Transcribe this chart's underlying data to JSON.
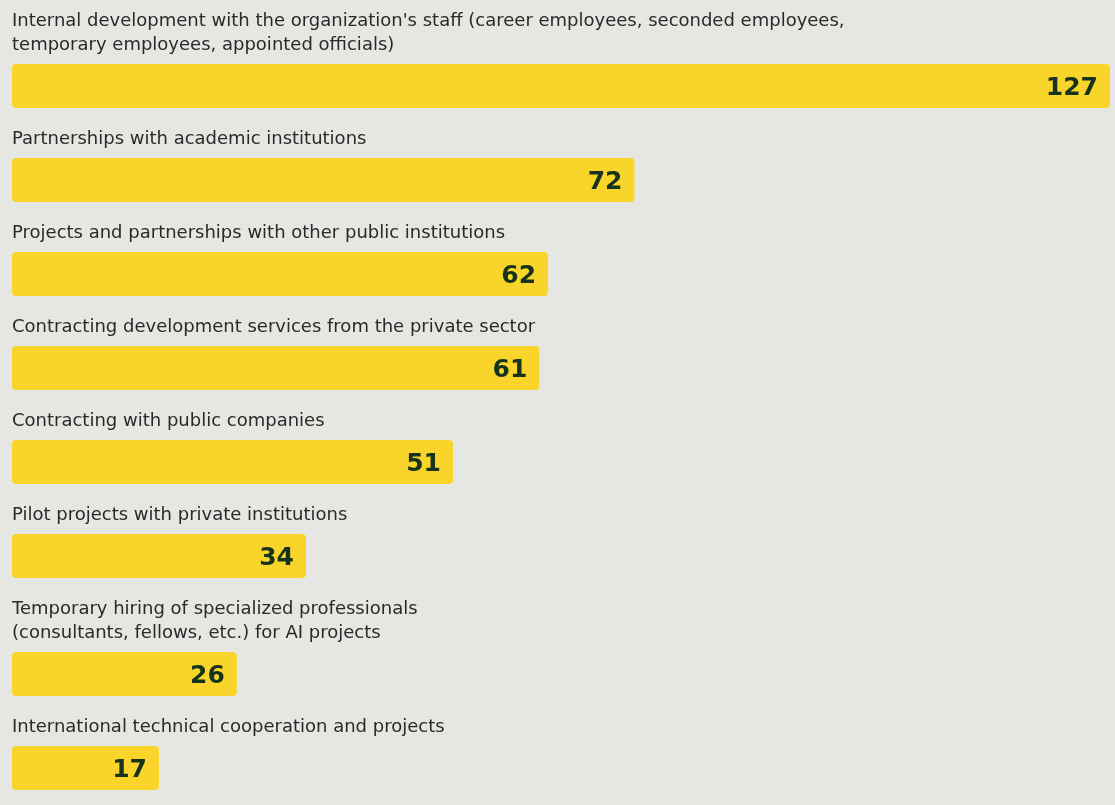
{
  "chart_data": {
    "type": "bar",
    "orientation": "horizontal",
    "categories": [
      "Internal development with the organization's staff (career employees, seconded employees,\ntemporary employees, appointed officials)",
      "Partnerships with academic institutions",
      "Projects and partnerships with other public institutions",
      "Contracting development services from the private sector",
      "Contracting with public companies",
      "Pilot projects with private institutions",
      "Temporary hiring of specialized professionals\n(consultants, fellows, etc.) for AI projects",
      "International technical cooperation and projects"
    ],
    "values": [
      127,
      72,
      62,
      61,
      51,
      34,
      26,
      17
    ],
    "color": "#f9d52b",
    "data_labels": true
  }
}
